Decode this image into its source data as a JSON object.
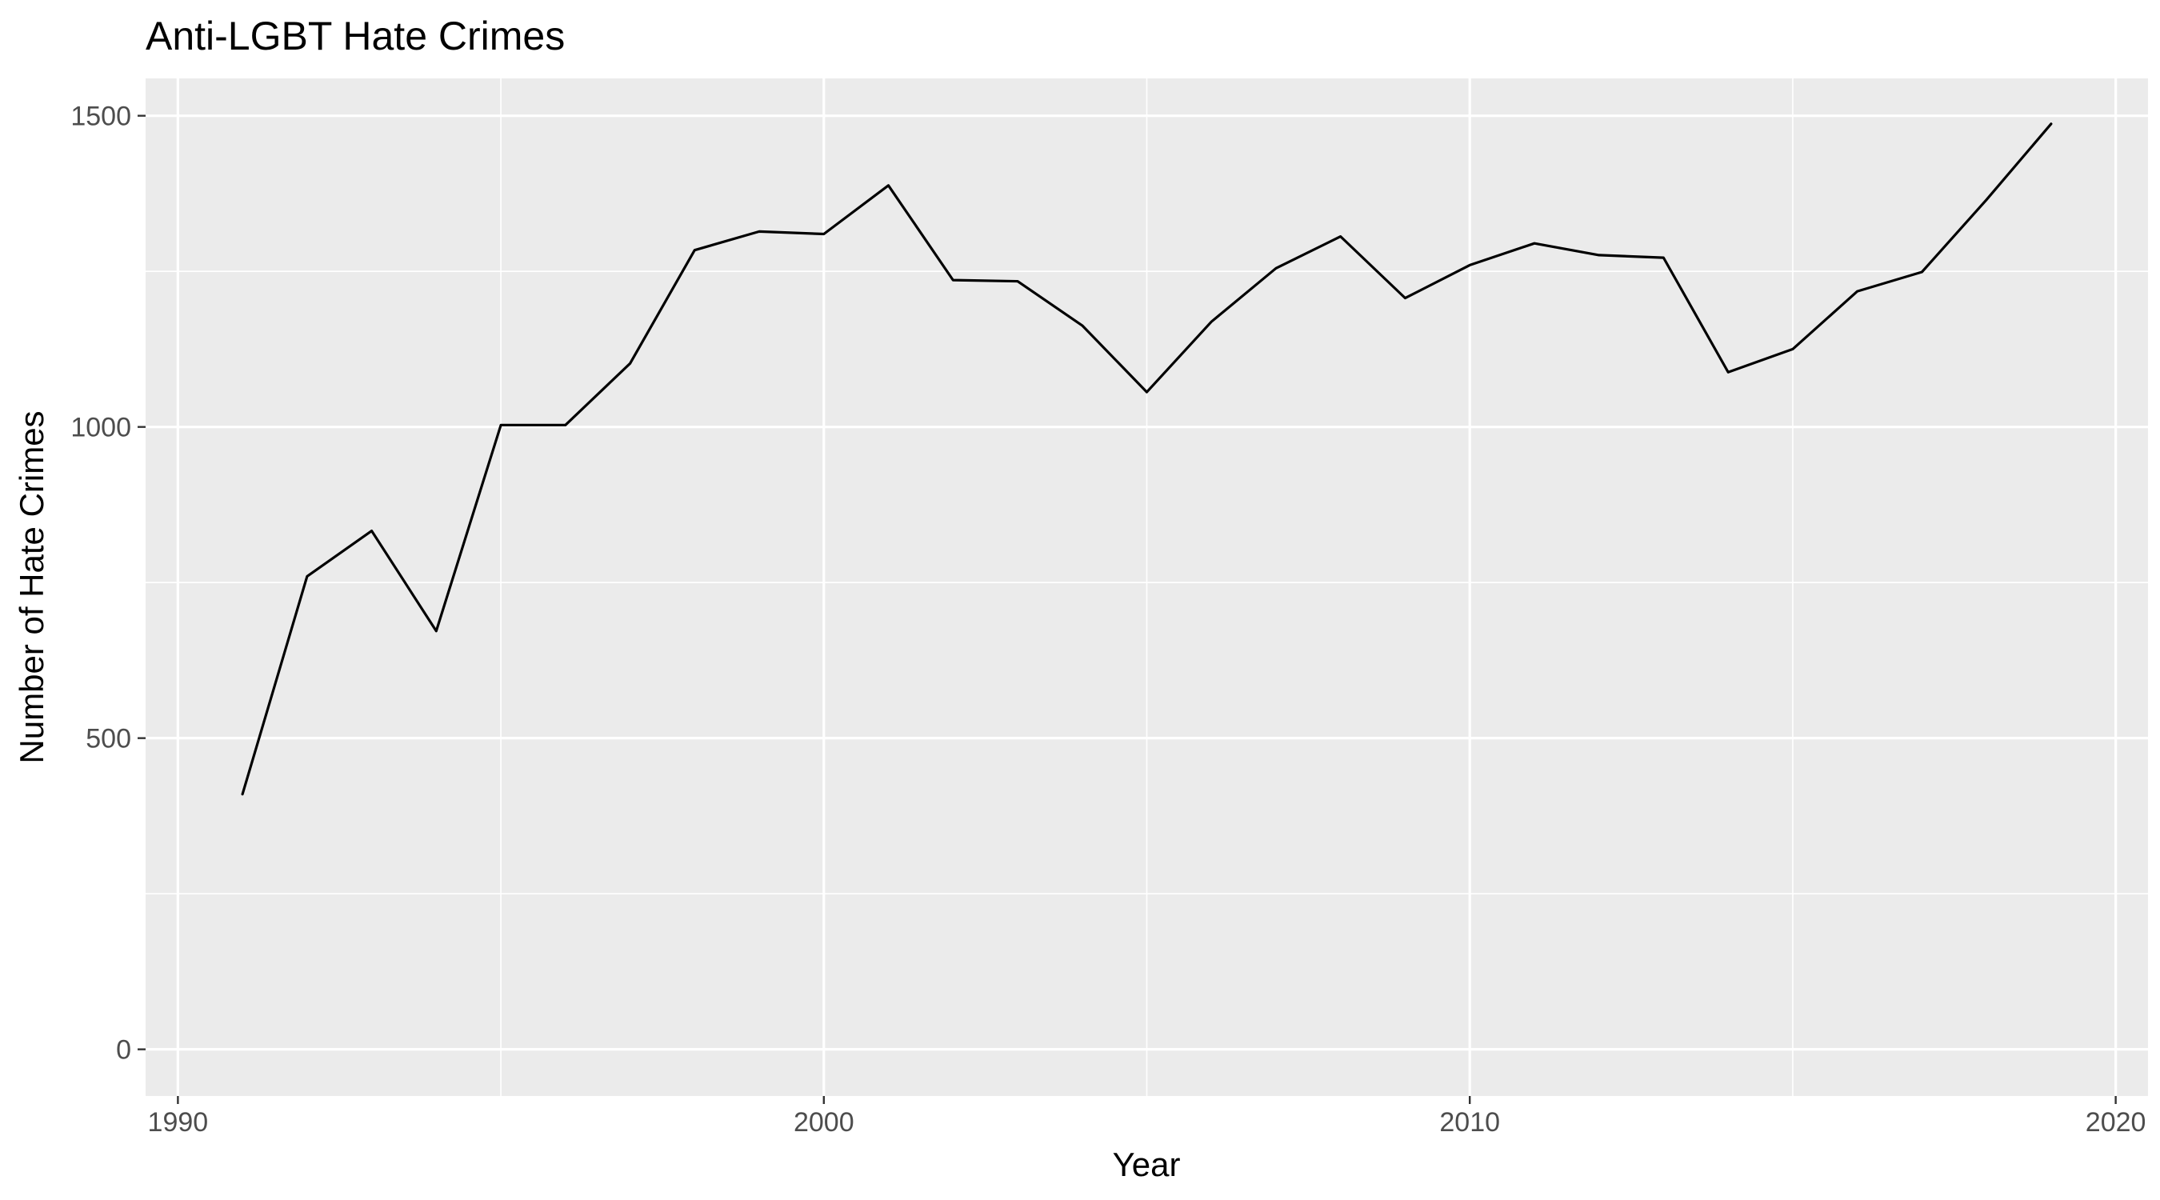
{
  "chart_data": {
    "type": "line",
    "title": "Anti-LGBT Hate Crimes",
    "xlabel": "Year",
    "ylabel": "Number of Hate Crimes",
    "xlim": [
      1989.5,
      2020.5
    ],
    "ylim": [
      -75,
      1560
    ],
    "x_ticks": [
      1990,
      2000,
      2010,
      2020
    ],
    "y_ticks": [
      0,
      500,
      1000,
      1500
    ],
    "grid": true,
    "legend": "none",
    "colors": {
      "panel": "#ebebeb",
      "grid": "#ffffff",
      "line": "#000000",
      "ticks": "#333333"
    },
    "series": [
      {
        "x": [
          1991,
          1992,
          1993,
          1994,
          1995,
          1996,
          1997,
          1998,
          1999,
          2000,
          2001,
          2002,
          2003,
          2004,
          2005,
          2006,
          2007,
          2008,
          2009,
          2010,
          2011,
          2012,
          2013,
          2014,
          2015,
          2016,
          2017,
          2018,
          2019
        ],
        "y": [
          410,
          760,
          833,
          672,
          1003,
          1003,
          1102,
          1284,
          1314,
          1310,
          1388,
          1236,
          1234,
          1163,
          1056,
          1169,
          1255,
          1306,
          1207,
          1260,
          1295,
          1276,
          1272,
          1088,
          1125,
          1218,
          1249,
          1365,
          1487
        ]
      }
    ]
  }
}
